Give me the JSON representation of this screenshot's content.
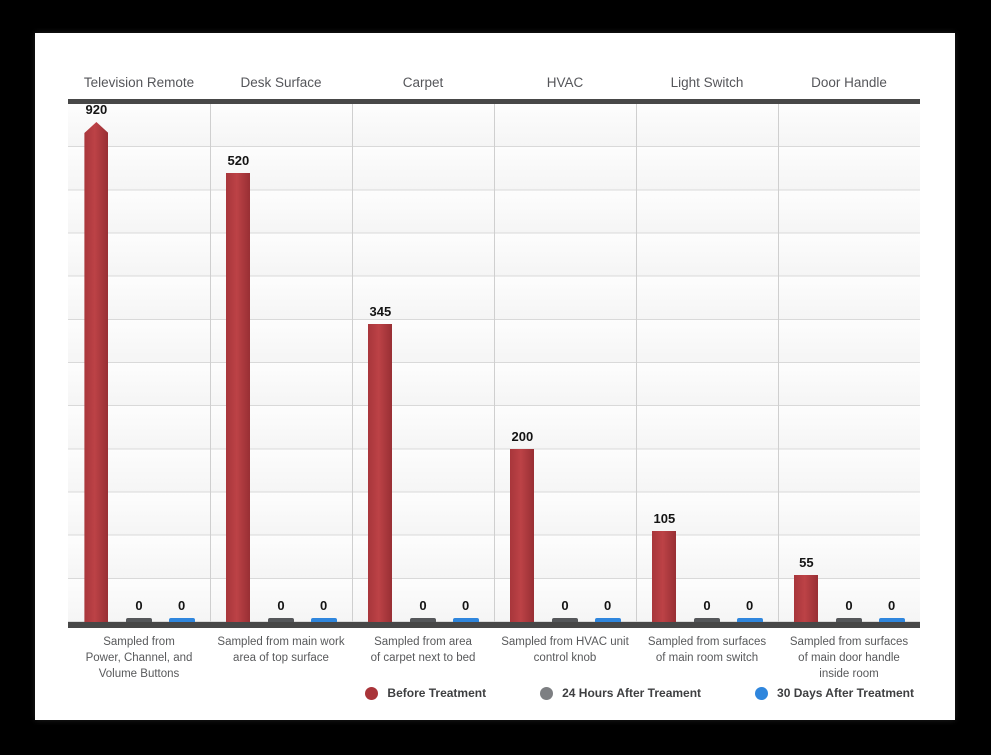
{
  "chart_data": {
    "type": "bar",
    "title": "",
    "categories": [
      "Television Remote",
      "Desk Surface",
      "Carpet",
      "HVAC",
      "Light Switch",
      "Door Handle"
    ],
    "captions": [
      "Sampled from\nPower, Channel, and\nVolume Buttons",
      "Sampled from main work\narea of top surface",
      "Sampled from area\nof carpet next to bed",
      "Sampled from HVAC unit\ncontrol knob",
      "Sampled from surfaces\nof main room switch",
      "Sampled from surfaces\nof main door handle\ninside room"
    ],
    "series": [
      {
        "name": "Before Treatment",
        "color": "#a93439",
        "values": [
          920,
          520,
          345,
          200,
          105,
          55
        ]
      },
      {
        "name": "24 Hours After Treament",
        "color": "#7d7f82",
        "values": [
          0,
          0,
          0,
          0,
          0,
          0
        ]
      },
      {
        "name": "30 Days After Treatment",
        "color": "#2f86dd",
        "values": [
          0,
          0,
          0,
          0,
          0,
          0
        ]
      }
    ],
    "ylim": [
      0,
      600
    ],
    "grid_interval": 50,
    "grid": true,
    "overflow_clipped_values": [
      920
    ],
    "legend_position": "bottom-right",
    "xlabel": "",
    "ylabel": ""
  },
  "legend": {
    "items": [
      {
        "label": "Before Treatment",
        "color": "#a93439"
      },
      {
        "label": "24 Hours After Treament",
        "color": "#7d7f82"
      },
      {
        "label": "30 Days After Treatment",
        "color": "#2f86dd"
      }
    ]
  },
  "colors": {
    "background": "#000000",
    "card": "#ffffff",
    "bar_red": "#b03a3f",
    "bar_gray": "#55575a",
    "bar_blue": "#2f86dd",
    "rule_dark": "#474747",
    "gridline": "#d9d9d9",
    "header_text": "#55565a",
    "caption_text": "#58595b"
  }
}
